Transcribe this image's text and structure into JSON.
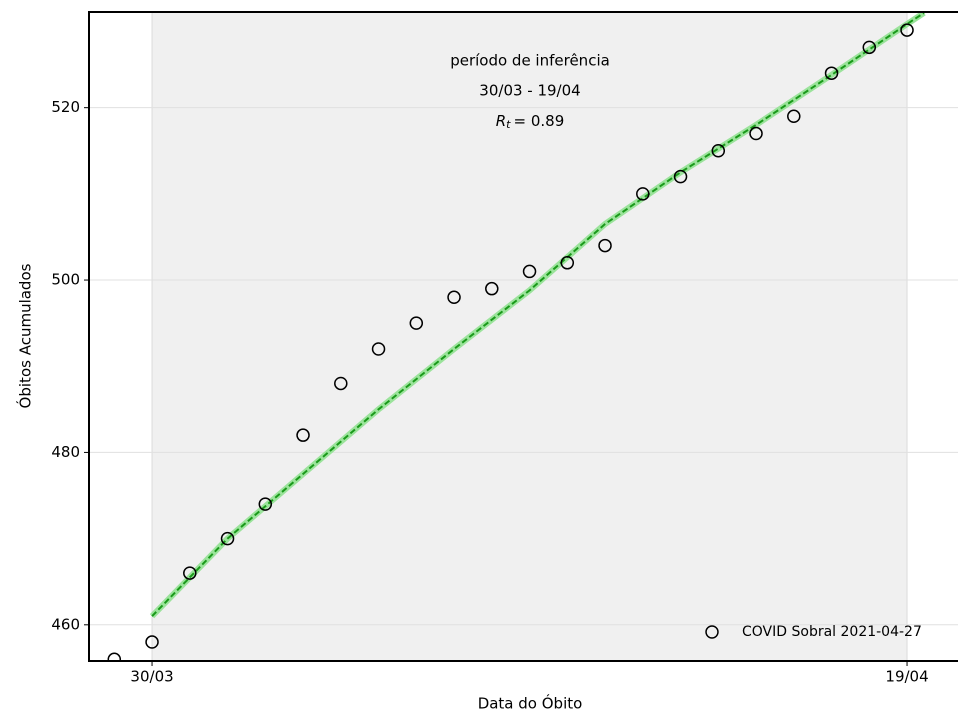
{
  "chart_data": {
    "type": "scatter",
    "xlabel": "Data do Óbito",
    "ylabel": "Óbitos Acumulados",
    "annotation": [
      "período de inferência",
      "30/03 - 19/04"
    ],
    "rt": {
      "symbol": "R",
      "subscript": "t",
      "text": "= 0.89"
    },
    "series": [
      {
        "name": "COVID Sobral 2021-04-27",
        "color": "#000000",
        "x": [
          0,
          1,
          2,
          3,
          4,
          5,
          6,
          7,
          8,
          9,
          10,
          11,
          12,
          13,
          14,
          15,
          16,
          17,
          18,
          19,
          20,
          21
        ],
        "values": [
          456,
          458,
          466,
          470,
          474,
          482,
          488,
          492,
          495,
          498,
          499,
          501,
          502,
          504,
          510,
          512,
          515,
          517,
          519,
          524,
          527,
          529
        ]
      }
    ],
    "fit": {
      "color": "#1a9a1a",
      "x": [
        1,
        3,
        5,
        7,
        9,
        11,
        13,
        15,
        17,
        19,
        21,
        21.45
      ],
      "values": [
        461,
        470,
        477.5,
        485,
        492,
        498.8,
        506.5,
        512.5,
        518,
        523.8,
        529.7,
        531
      ]
    },
    "shade": [
      1,
      21
    ],
    "xlim": [
      -0.67,
      22.35
    ],
    "ylim": [
      455.8,
      531.1
    ],
    "xticks": [
      {
        "value": 1,
        "label": "30/03"
      },
      {
        "value": 21,
        "label": "19/04"
      }
    ],
    "yticks": [
      460,
      480,
      500,
      520
    ],
    "grid": true
  }
}
